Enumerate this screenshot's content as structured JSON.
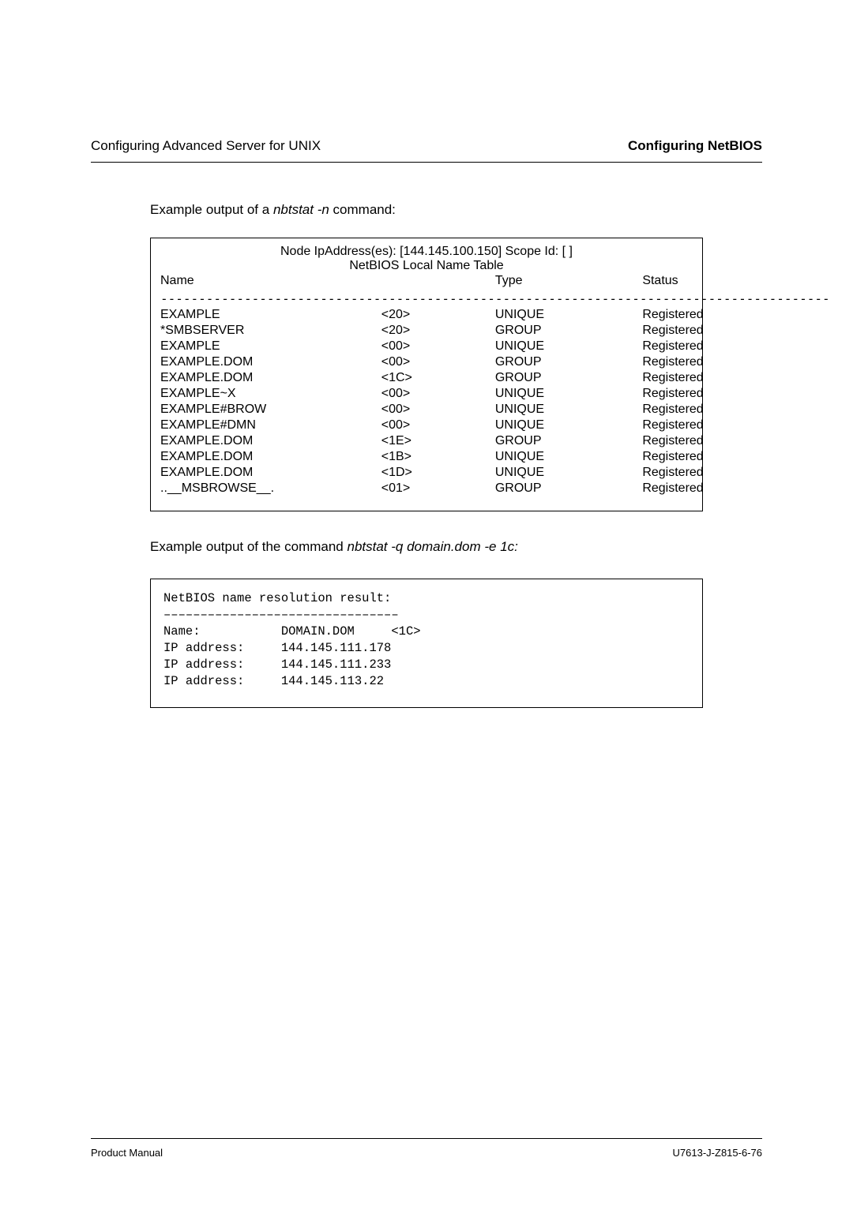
{
  "header": {
    "left": "Configuring Advanced Server for UNIX",
    "right": "Configuring NetBIOS"
  },
  "intro1": {
    "prefix": "Example output of a ",
    "command": "nbtstat -n",
    "suffix": " command:"
  },
  "table1": {
    "title_line1": "Node IpAddress(es): [144.145.100.150] Scope Id: [ ]",
    "title_line2": "NetBIOS Local Name Table",
    "columns": {
      "name": "Name",
      "type": "Type",
      "status": "Status"
    },
    "dashes": "----------------------------------------------------------------------------------------",
    "rows": [
      {
        "name": "EXAMPLE",
        "suffix": "<20>",
        "type": "UNIQUE",
        "status": "Registered"
      },
      {
        "name": "*SMBSERVER",
        "suffix": "<20>",
        "type": "GROUP",
        "status": "Registered"
      },
      {
        "name": "EXAMPLE",
        "suffix": "<00>",
        "type": "UNIQUE",
        "status": "Registered"
      },
      {
        "name": "EXAMPLE.DOM",
        "suffix": "<00>",
        "type": "GROUP",
        "status": "Registered"
      },
      {
        "name": "EXAMPLE.DOM",
        "suffix": "<1C>",
        "type": "GROUP",
        "status": "Registered"
      },
      {
        "name": "EXAMPLE~X",
        "suffix": "<00>",
        "type": "UNIQUE",
        "status": "Registered"
      },
      {
        "name": "EXAMPLE#BROW",
        "suffix": "<00>",
        "type": "UNIQUE",
        "status": "Registered"
      },
      {
        "name": "EXAMPLE#DMN",
        "suffix": "<00>",
        "type": "UNIQUE",
        "status": "Registered"
      },
      {
        "name": "EXAMPLE.DOM",
        "suffix": "<1E>",
        "type": "GROUP",
        "status": "Registered"
      },
      {
        "name": "EXAMPLE.DOM",
        "suffix": "<1B>",
        "type": "UNIQUE",
        "status": "Registered"
      },
      {
        "name": "EXAMPLE.DOM",
        "suffix": "<1D>",
        "type": "UNIQUE",
        "status": "Registered"
      },
      {
        "name": "..__MSBROWSE__.",
        "suffix": "<01>",
        "type": "GROUP",
        "status": "Registered"
      }
    ]
  },
  "intro2": {
    "prefix": "Example output of the command ",
    "command": "nbtstat -q domain.dom -e 1c:"
  },
  "codebox": {
    "line1": "NetBIOS name resolution result:",
    "line2": "––––––––––––––––––––––––––––––––",
    "line3": "Name:           DOMAIN.DOM     <1C>",
    "line4": "IP address:     144.145.111.178",
    "line5": "IP address:     144.145.111.233",
    "line6": "IP address:     144.145.113.22"
  },
  "footer": {
    "left": "Product Manual",
    "right": "U7613-J-Z815-6-76"
  },
  "colors": {
    "text": "#000000",
    "background": "#ffffff",
    "border": "#000000"
  }
}
